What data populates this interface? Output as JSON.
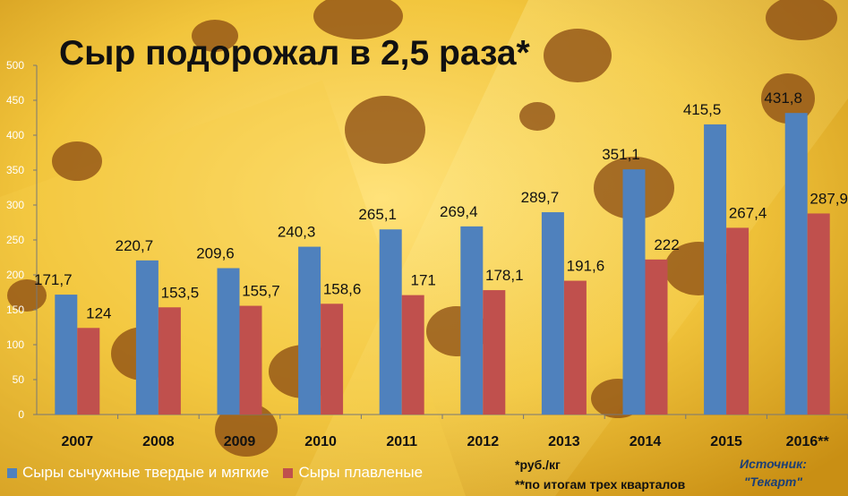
{
  "title": "Сыр подорожал в 2,5 раза*",
  "colors": {
    "series1": "#4f81bd",
    "series2": "#c0504d"
  },
  "legend": {
    "series1": "Сыры сычужные твердые и мягкие",
    "series2": "Сыры плавленые"
  },
  "notes": {
    "unit": "*руб./кг",
    "footnote": "**по итогам трех кварталов"
  },
  "source": {
    "label": "Источник:",
    "name": "\"Текарт\""
  },
  "chart_data": {
    "type": "bar",
    "categories": [
      "2007",
      "2008",
      "2009",
      "2010",
      "2011",
      "2012",
      "2013",
      "2014",
      "2015",
      "2016**"
    ],
    "series": [
      {
        "name": "Сыры сычужные твердые и мягкие",
        "values": [
          171.7,
          220.7,
          209.6,
          240.3,
          265.1,
          269.4,
          289.7,
          351.1,
          415.5,
          431.8
        ],
        "labels": [
          "171,7",
          "220,7",
          "209,6",
          "240,3",
          "265,1",
          "269,4",
          "289,7",
          "351,1",
          "415,5",
          "431,8"
        ]
      },
      {
        "name": "Сыры плавленые",
        "values": [
          124,
          153.5,
          155.7,
          158.6,
          171,
          178.1,
          191.6,
          222,
          267.4,
          287.9
        ],
        "labels": [
          "124",
          "153,5",
          "155,7",
          "158,6",
          "171",
          "178,1",
          "191,6",
          "222",
          "267,4",
          "287,9"
        ]
      }
    ],
    "ylim": [
      0,
      500
    ],
    "yticks": [
      "0",
      "50",
      "100",
      "150",
      "200",
      "250",
      "300",
      "350",
      "400",
      "450",
      "500"
    ],
    "grid": false,
    "legend_position": "bottom-left"
  }
}
